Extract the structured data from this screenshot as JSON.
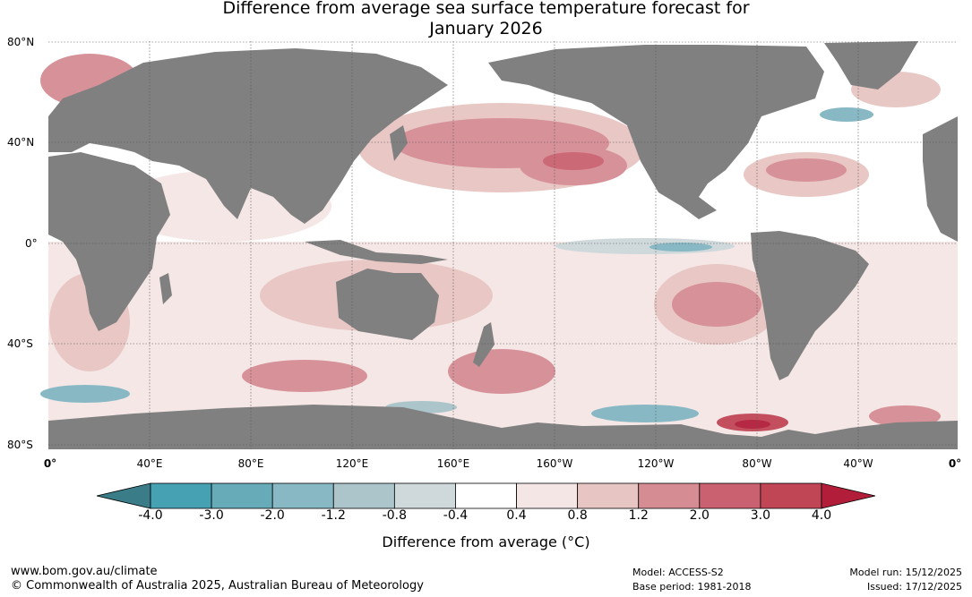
{
  "title": {
    "line1": "Difference from average sea surface temperature forecast for",
    "line2": "January 2026"
  },
  "map": {
    "lat_labels": [
      "80°N",
      "40°N",
      "0°",
      "40°S",
      "80°S"
    ],
    "lon_labels": [
      "0°",
      "40°E",
      "80°E",
      "120°E",
      "160°E",
      "160°W",
      "120°W",
      "80°W",
      "40°W",
      "0°"
    ]
  },
  "colorbar": {
    "ticks": [
      "-4.0",
      "-3.0",
      "-2.0",
      "-1.2",
      "-0.8",
      "-0.4",
      "0.4",
      "0.8",
      "1.2",
      "2.0",
      "3.0",
      "4.0"
    ],
    "colors": [
      "#46a1b3",
      "#67abb9",
      "#88b8c4",
      "#abc5cb",
      "#cfd9dc",
      "#ffffff",
      "#f4e6e5",
      "#e7c5c2",
      "#d58c93",
      "#c96170",
      "#c04656"
    ],
    "under_color": "#3a7c88",
    "over_color": "#b21e3a",
    "label": "Difference from average (°C)"
  },
  "footer": {
    "url": "www.bom.gov.au/climate",
    "copyright": "© Commonwealth of Australia 2025, Australian Bureau of Meteorology",
    "model": "Model: ACCESS-S2",
    "base_period": "Base period: 1981-2018",
    "model_run": "Model run: 15/12/2025",
    "issued": "Issued: 17/12/2025"
  }
}
